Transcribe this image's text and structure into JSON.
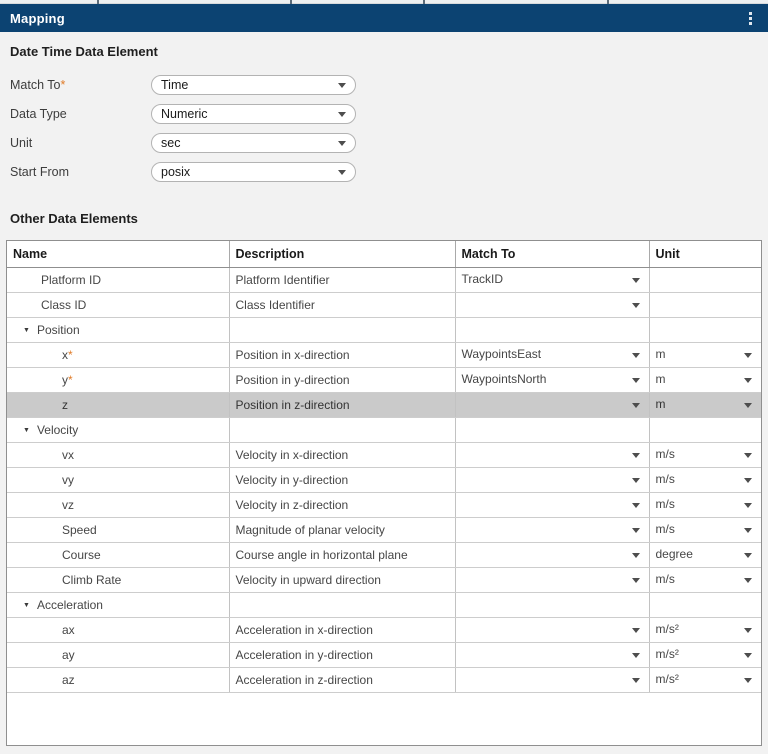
{
  "header": {
    "title": "Mapping",
    "menu_icon": "vertical-ellipsis"
  },
  "colors": {
    "header_blue": "#0c4372",
    "required_asterisk_orange": "#e07b27",
    "selected_row_gray": "#cacaca"
  },
  "datetime_section": {
    "title": "Date Time Data Element",
    "fields": [
      {
        "label": "Match To",
        "required": true,
        "value": "Time"
      },
      {
        "label": "Data Type",
        "required": false,
        "value": "Numeric"
      },
      {
        "label": "Unit",
        "required": false,
        "value": "sec"
      },
      {
        "label": "Start From",
        "required": false,
        "value": "posix"
      }
    ]
  },
  "other_section": {
    "title": "Other Data Elements",
    "columns": [
      "Name",
      "Description",
      "Match To",
      "Unit"
    ],
    "rows": [
      {
        "type": "item",
        "level": 1,
        "name": "Platform ID",
        "required": false,
        "selected": false,
        "description": "Platform Identifier",
        "match_to": "TrackID",
        "match_dropdown": true,
        "unit": "",
        "unit_dropdown": false
      },
      {
        "type": "item",
        "level": 1,
        "name": "Class ID",
        "required": false,
        "selected": false,
        "description": "Class Identifier",
        "match_to": "",
        "match_dropdown": true,
        "unit": "",
        "unit_dropdown": false
      },
      {
        "type": "group",
        "name": "Position",
        "expanded": true
      },
      {
        "type": "item",
        "level": 2,
        "name": "x",
        "required": true,
        "selected": false,
        "description": "Position in x-direction",
        "match_to": "WaypointsEast",
        "match_dropdown": true,
        "unit": "m",
        "unit_dropdown": true
      },
      {
        "type": "item",
        "level": 2,
        "name": "y",
        "required": true,
        "selected": false,
        "description": "Position in y-direction",
        "match_to": "WaypointsNorth",
        "match_dropdown": true,
        "unit": "m",
        "unit_dropdown": true
      },
      {
        "type": "item",
        "level": 2,
        "name": "z",
        "required": false,
        "selected": true,
        "description": "Position in z-direction",
        "match_to": "",
        "match_dropdown": true,
        "unit": "m",
        "unit_dropdown": true
      },
      {
        "type": "group",
        "name": "Velocity",
        "expanded": true
      },
      {
        "type": "item",
        "level": 2,
        "name": "vx",
        "required": false,
        "selected": false,
        "description": "Velocity in x-direction",
        "match_to": "",
        "match_dropdown": true,
        "unit": "m/s",
        "unit_dropdown": true
      },
      {
        "type": "item",
        "level": 2,
        "name": "vy",
        "required": false,
        "selected": false,
        "description": "Velocity in y-direction",
        "match_to": "",
        "match_dropdown": true,
        "unit": "m/s",
        "unit_dropdown": true
      },
      {
        "type": "item",
        "level": 2,
        "name": "vz",
        "required": false,
        "selected": false,
        "description": "Velocity in z-direction",
        "match_to": "",
        "match_dropdown": true,
        "unit": "m/s",
        "unit_dropdown": true
      },
      {
        "type": "item",
        "level": 2,
        "name": "Speed",
        "required": false,
        "selected": false,
        "description": "Magnitude of planar velocity",
        "match_to": "",
        "match_dropdown": true,
        "unit": "m/s",
        "unit_dropdown": true
      },
      {
        "type": "item",
        "level": 2,
        "name": "Course",
        "required": false,
        "selected": false,
        "description": "Course angle in horizontal plane",
        "match_to": "",
        "match_dropdown": true,
        "unit": "degree",
        "unit_dropdown": true
      },
      {
        "type": "item",
        "level": 2,
        "name": "Climb Rate",
        "required": false,
        "selected": false,
        "description": "Velocity in upward direction",
        "match_to": "",
        "match_dropdown": true,
        "unit": "m/s",
        "unit_dropdown": true
      },
      {
        "type": "group",
        "name": "Acceleration",
        "expanded": true
      },
      {
        "type": "item",
        "level": 2,
        "name": "ax",
        "required": false,
        "selected": false,
        "description": "Acceleration in x-direction",
        "match_to": "",
        "match_dropdown": true,
        "unit": "m/s²",
        "unit_dropdown": true
      },
      {
        "type": "item",
        "level": 2,
        "name": "ay",
        "required": false,
        "selected": false,
        "description": "Acceleration in y-direction",
        "match_to": "",
        "match_dropdown": true,
        "unit": "m/s²",
        "unit_dropdown": true
      },
      {
        "type": "item",
        "level": 2,
        "name": "az",
        "required": false,
        "selected": false,
        "description": "Acceleration in z-direction",
        "match_to": "",
        "match_dropdown": true,
        "unit": "m/s²",
        "unit_dropdown": true
      }
    ]
  }
}
